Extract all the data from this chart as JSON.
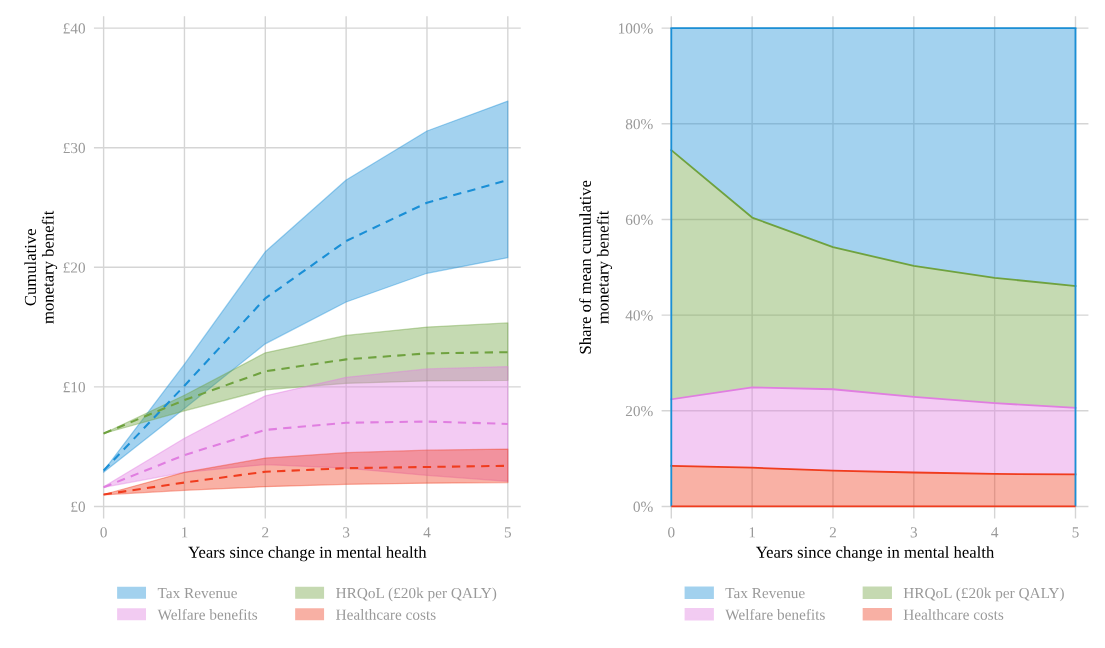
{
  "chart_data": [
    {
      "type": "line",
      "xlabel": "Years since change in mental health",
      "ylabel": "Cumulative\nmonetary benefit",
      "x": [
        0,
        1,
        2,
        3,
        4,
        5
      ],
      "xlim": [
        -0.12,
        5.16
      ],
      "xticks": [
        0,
        1,
        2,
        3,
        4,
        5
      ],
      "ylim": [
        -1,
        41
      ],
      "yticks": [
        {
          "value": 0,
          "label": "£0"
        },
        {
          "value": 10,
          "label": "£10"
        },
        {
          "value": 20,
          "label": "£20"
        },
        {
          "value": 30,
          "label": "£30"
        },
        {
          "value": 40,
          "label": "£40"
        }
      ],
      "grid": true,
      "legend": "bottom",
      "line_style": "dashed",
      "marker": "none",
      "series": [
        {
          "name": "Tax Revenue",
          "color": "#1a8fd6",
          "values": [
            3.0,
            10.1,
            17.4,
            22.2,
            25.4,
            27.3
          ],
          "lower": [
            2.85,
            8.2,
            13.6,
            17.1,
            19.5,
            20.8
          ],
          "upper": [
            2.98,
            11.9,
            21.3,
            27.3,
            31.4,
            33.9
          ]
        },
        {
          "name": "HRQoL (£20k per QALY)",
          "color": "#6fa23f",
          "values": [
            6.1,
            8.9,
            11.3,
            12.3,
            12.8,
            12.9
          ],
          "lower": [
            6.1,
            8.0,
            9.75,
            10.3,
            10.5,
            10.55
          ],
          "upper": [
            6.1,
            9.3,
            12.85,
            14.3,
            15.0,
            15.35
          ]
        },
        {
          "name": "Welfare benefits",
          "color": "#e07ee0",
          "values": [
            1.6,
            4.3,
            6.4,
            7.0,
            7.1,
            6.9
          ],
          "lower": [
            1.6,
            2.85,
            3.5,
            3.2,
            2.6,
            2.1
          ],
          "upper": [
            1.64,
            5.7,
            9.25,
            10.8,
            11.5,
            11.7
          ]
        },
        {
          "name": "Healthcare costs",
          "color": "#f03c1e",
          "values": [
            1.0,
            2.0,
            2.9,
            3.2,
            3.3,
            3.4
          ],
          "lower": [
            0.97,
            1.35,
            1.65,
            1.85,
            1.95,
            2.0
          ],
          "upper": [
            1.0,
            2.85,
            4.05,
            4.5,
            4.7,
            4.8
          ]
        }
      ]
    },
    {
      "type": "area",
      "stacked": true,
      "xlabel": "Years since change in mental health",
      "ylabel": "Share of mean cumulative\nmonetary benefit",
      "x": [
        0,
        1,
        2,
        3,
        4,
        5
      ],
      "xlim": [
        -0.12,
        5.16
      ],
      "xticks": [
        0,
        1,
        2,
        3,
        4,
        5
      ],
      "ylim": [
        -2.5,
        102.5
      ],
      "yticks": [
        {
          "value": 0,
          "label": "0%"
        },
        {
          "value": 20,
          "label": "20%"
        },
        {
          "value": 40,
          "label": "40%"
        },
        {
          "value": 60,
          "label": "60%"
        },
        {
          "value": 80,
          "label": "80%"
        },
        {
          "value": 100,
          "label": "100%"
        }
      ],
      "grid": true,
      "legend": "bottom",
      "series": [
        {
          "name": "Healthcare costs",
          "color": "#f03c1e",
          "values": [
            8.5,
            8.1,
            7.5,
            7.1,
            6.8,
            6.7
          ]
        },
        {
          "name": "Welfare benefits",
          "color": "#e07ee0",
          "values": [
            13.9,
            16.8,
            17.0,
            15.8,
            14.8,
            13.9
          ]
        },
        {
          "name": "HRQoL (£20k per QALY)",
          "color": "#6fa23f",
          "values": [
            52.1,
            35.5,
            29.7,
            27.4,
            26.2,
            25.5
          ]
        },
        {
          "name": "Tax Revenue",
          "color": "#1a8fd6",
          "values": [
            25.5,
            39.6,
            45.8,
            49.7,
            52.2,
            53.9
          ]
        }
      ]
    }
  ]
}
